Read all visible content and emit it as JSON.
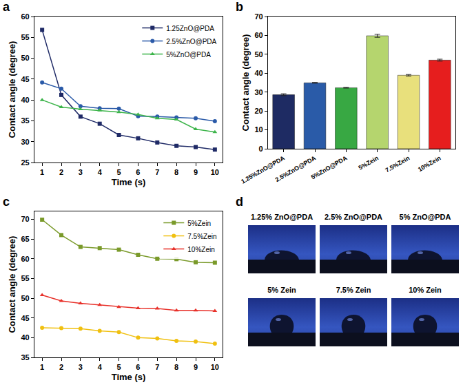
{
  "chart_data": [
    {
      "panel": "a",
      "type": "line",
      "x_label": "Time (s)",
      "y_label": "Contact angle (degree)",
      "x": [
        1,
        2,
        3,
        4,
        5,
        6,
        7,
        8,
        9,
        10
      ],
      "xlim": [
        0.6,
        10.4
      ],
      "xticks": [
        1,
        2,
        3,
        4,
        5,
        6,
        7,
        8,
        9,
        10
      ],
      "ylim": [
        25,
        60
      ],
      "yticks": [
        25,
        30,
        35,
        40,
        45,
        50,
        55,
        60
      ],
      "grid": false,
      "legend": "upper right",
      "series": [
        {
          "name": "1.25ZnO@PDA",
          "color": "#1f2a66",
          "marker": "square",
          "line_style": "solid",
          "values": [
            56.8,
            41.2,
            36.0,
            34.3,
            31.6,
            30.8,
            29.8,
            29.0,
            28.7,
            28.1
          ]
        },
        {
          "name": "2.5%ZnO@PDA",
          "color": "#2a5aa8",
          "marker": "circle",
          "line_style": "solid",
          "values": [
            44.2,
            42.7,
            38.5,
            38.0,
            37.9,
            36.1,
            36.0,
            35.8,
            35.6,
            34.9
          ]
        },
        {
          "name": "5%ZnO@PDA",
          "color": "#3cb44a",
          "marker": "triangle",
          "line_style": "solid",
          "values": [
            40.0,
            38.3,
            37.8,
            37.5,
            37.1,
            36.5,
            35.6,
            35.3,
            33.0,
            32.3
          ]
        }
      ]
    },
    {
      "panel": "b",
      "type": "bar",
      "y_label": "Contact angle (degree)",
      "categories": [
        "1.25%ZnO@PDA",
        "2.5%ZnO@PDA",
        "5%ZnO@PDA",
        "5%Zein",
        "7.5%Zein",
        "10%Zein"
      ],
      "values": [
        28.6,
        34.9,
        32.3,
        59.8,
        38.9,
        46.9
      ],
      "errors": [
        0.5,
        0.2,
        0.2,
        0.8,
        0.4,
        0.5
      ],
      "colors": [
        "#1e2b63",
        "#2a5ba8",
        "#38a843",
        "#b5d56e",
        "#e8e07c",
        "#e61e1e"
      ],
      "ylim": [
        0,
        70
      ],
      "yticks": [
        0,
        10,
        20,
        30,
        40,
        50,
        60,
        70
      ],
      "grid": false
    },
    {
      "panel": "c",
      "type": "line",
      "x_label": "Time (s)",
      "y_label": "Contact angle (degree)",
      "x": [
        1,
        2,
        3,
        4,
        5,
        6,
        7,
        8,
        9,
        10
      ],
      "xlim": [
        0.6,
        10.4
      ],
      "xticks": [
        1,
        2,
        3,
        4,
        5,
        6,
        7,
        8,
        9,
        10
      ],
      "ylim": [
        35,
        72
      ],
      "yticks": [
        35,
        40,
        45,
        50,
        55,
        60,
        65,
        70
      ],
      "grid": false,
      "legend": "upper right",
      "series": [
        {
          "name": "5%Zein",
          "color": "#7a9a2a",
          "marker": "square",
          "line_style": "solid",
          "values": [
            69.9,
            66.0,
            63.0,
            62.7,
            62.3,
            61.0,
            60.0,
            59.9,
            59.1,
            59.0
          ]
        },
        {
          "name": "7.5%Zein",
          "color": "#f0c010",
          "marker": "circle",
          "line_style": "solid",
          "values": [
            42.5,
            42.4,
            42.3,
            41.7,
            41.4,
            40.0,
            39.8,
            39.2,
            39.0,
            38.5
          ]
        },
        {
          "name": "10%Zein",
          "color": "#e8312a",
          "marker": "triangle",
          "line_style": "solid",
          "values": [
            50.8,
            49.3,
            48.7,
            48.3,
            47.8,
            47.5,
            47.4,
            46.9,
            46.9,
            46.8
          ]
        }
      ]
    },
    {
      "panel": "d",
      "type": "image",
      "labels": [
        "1.25% ZnO@PDA",
        "2.5% ZnO@PDA",
        "5% ZnO@PDA",
        "5% Zein",
        "7.5% Zein",
        "10% Zein"
      ]
    }
  ]
}
